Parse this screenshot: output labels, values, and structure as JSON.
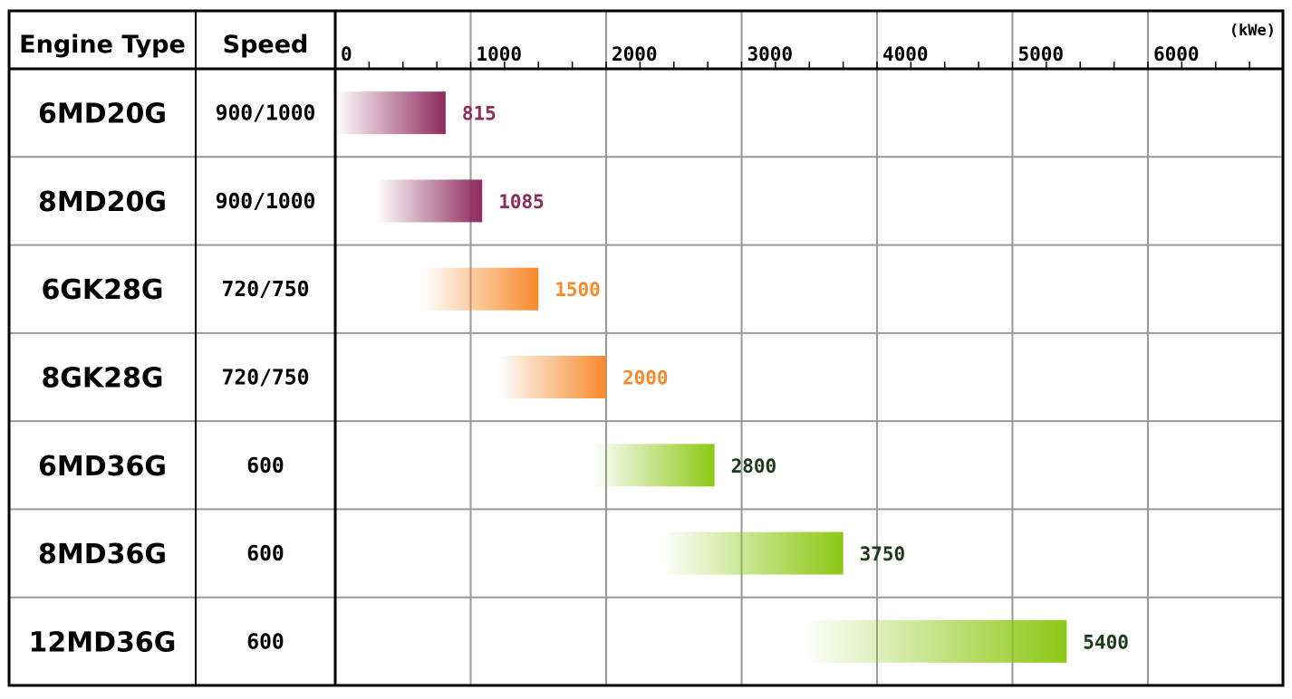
{
  "chart_data": {
    "type": "bar",
    "orientation": "horizontal",
    "title": "",
    "xlabel": "",
    "ylabel": "",
    "unit": "(kWe)",
    "column_headers": [
      "Engine Type",
      "Speed"
    ],
    "xlim": [
      0,
      7000
    ],
    "x_ticks": [
      0,
      1000,
      2000,
      3000,
      4000,
      5000,
      6000
    ],
    "x_tick_labels": [
      "0",
      "1000",
      "2000",
      "3000",
      "4000",
      "5000",
      "6000"
    ],
    "grid": true,
    "rows": [
      {
        "engine": "6MD20G",
        "speed": "900/1000",
        "min": 0,
        "value": 815,
        "label": "815",
        "color": "#8e2a5c"
      },
      {
        "engine": "8MD20G",
        "speed": "900/1000",
        "min": 300,
        "value": 1085,
        "label": "1085",
        "color": "#8e2a5c"
      },
      {
        "engine": "6GK28G",
        "speed": "720/750",
        "min": 650,
        "value": 1500,
        "label": "1500",
        "color": "#f7892a"
      },
      {
        "engine": "8GK28G",
        "speed": "720/750",
        "min": 1200,
        "value": 2000,
        "label": "2000",
        "color": "#f7892a"
      },
      {
        "engine": "6MD36G",
        "speed": "600",
        "min": 1900,
        "value": 2800,
        "label": "2800",
        "color": "#8cc814"
      },
      {
        "engine": "8MD36G",
        "speed": "600",
        "min": 2400,
        "value": 3750,
        "label": "3750",
        "color": "#8cc814"
      },
      {
        "engine": "12MD36G",
        "speed": "600",
        "min": 3450,
        "value": 5400,
        "label": "5400",
        "color": "#8cc814"
      }
    ],
    "label_colors": [
      "#8e2a5c",
      "#8e2a5c",
      "#f7892a",
      "#f7892a",
      "#1a3a1a",
      "#1a3a1a",
      "#1a3a1a"
    ]
  }
}
